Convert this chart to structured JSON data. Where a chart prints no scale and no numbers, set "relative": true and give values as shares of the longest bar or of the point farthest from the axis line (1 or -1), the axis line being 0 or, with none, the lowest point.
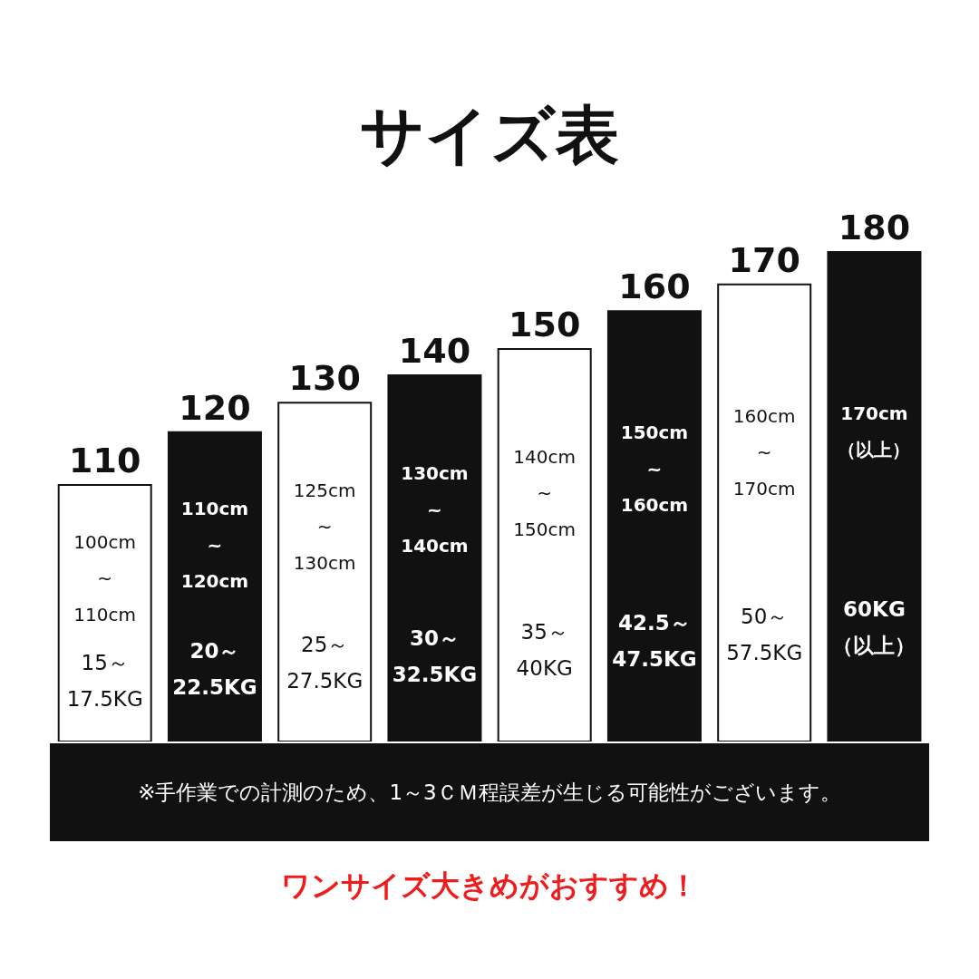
{
  "chart_data": {
    "type": "bar",
    "title": "サイズ表",
    "relative": true,
    "categories": [
      "110",
      "120",
      "130",
      "140",
      "150",
      "160",
      "170",
      "180"
    ],
    "values": [
      0.524,
      0.632,
      0.692,
      0.748,
      0.802,
      0.879,
      0.934,
      1
    ],
    "colors": [
      "#ffffff",
      "#111111",
      "#ffffff",
      "#111111",
      "#ffffff",
      "#111111",
      "#ffffff",
      "#111111"
    ],
    "annotations": [
      "100cm\n~\n110cm",
      "15～\n17.5KG",
      "110cm\n~\n120cm",
      "20～\n22.5KG",
      "125cm\n~\n130cm",
      "25～\n27.5KG",
      "130cm\n~\n140cm",
      "30～\n32.5KG",
      "140cm\n~\n150cm",
      "35～\n40KG",
      "150cm\n~\n160cm",
      "42.5～\n47.5KG",
      "160cm\n~\n170cm",
      "50～\n57.5KG",
      "170cm\n（以上）",
      "60KG\n（以上）",
      "※手作業での計測のため、1～3ＣＭ程誤差が生じる可能性がございます。",
      "ワンサイズ大きめがおすすめ！"
    ]
  }
}
